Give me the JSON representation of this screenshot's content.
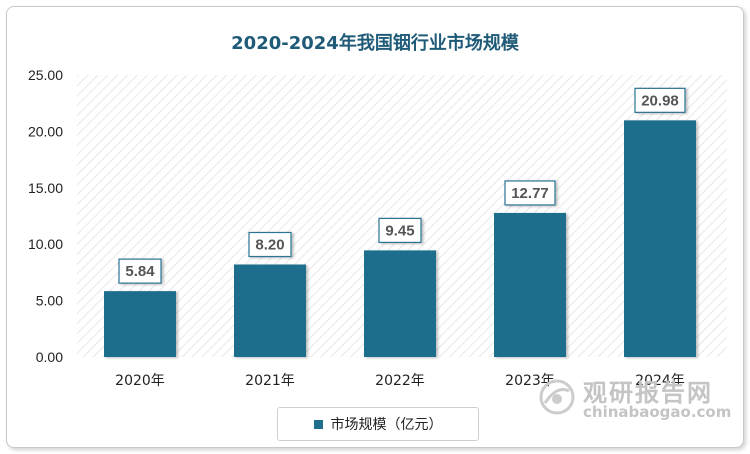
{
  "chart_data": {
    "type": "bar",
    "title": "2020-2024年我国铟行业市场规模",
    "categories": [
      "2020年",
      "2021年",
      "2022年",
      "2023年",
      "2024年"
    ],
    "series": [
      {
        "name": "市场规模（亿元）",
        "values": [
          5.84,
          8.2,
          9.45,
          12.77,
          20.98
        ]
      }
    ],
    "value_labels": [
      "5.84",
      "8.20",
      "9.45",
      "12.77",
      "20.98"
    ],
    "yticks": [
      "0.00",
      "5.00",
      "10.00",
      "15.00",
      "20.00",
      "25.00"
    ],
    "ylim": [
      0,
      25
    ],
    "grid": false,
    "plot_background": "hatched",
    "legend_position": "bottom",
    "bar_color": "#1f6e8c",
    "title_color": "#1f5b78"
  },
  "watermark": {
    "cn": "观研报告网",
    "en": "chinabaogao.com"
  }
}
